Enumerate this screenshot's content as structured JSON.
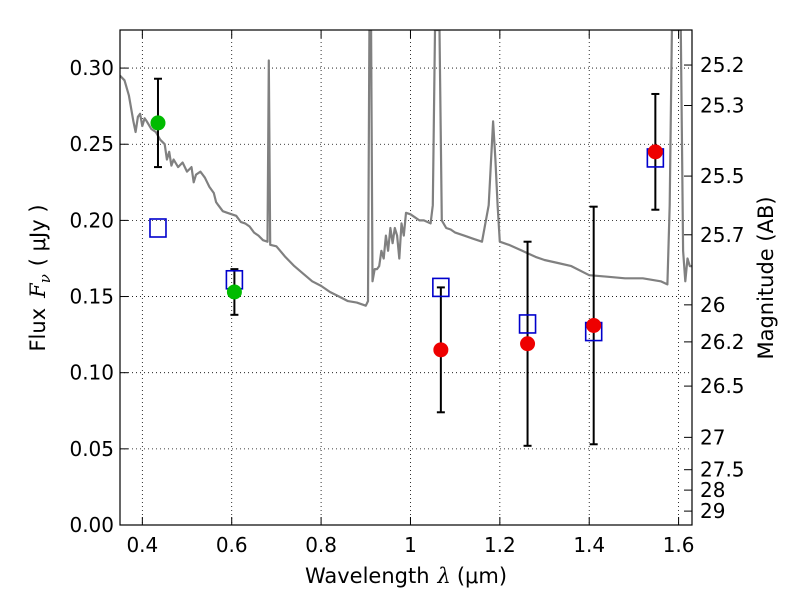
{
  "chart_data": {
    "type": "scatter",
    "xlabel": "Wavelength",
    "xlabel_symbol": "λ",
    "xlabel_unit": "(μm)",
    "ylabel": "Flux",
    "ylabel_symbol": "F",
    "ylabel_subscript": "ν",
    "ylabel_unit": "( μJy )",
    "y2label": "Magnitude (AB)",
    "xlim": [
      0.35,
      1.63
    ],
    "ylim": [
      0.0,
      0.325
    ],
    "grid": true,
    "x_ticks": [
      0.4,
      0.6,
      0.8,
      1.0,
      1.2,
      1.4,
      1.6
    ],
    "x_tick_labels": [
      "0.4",
      "0.6",
      "0.8",
      "1",
      "1.2",
      "1.4",
      "1.6"
    ],
    "y_ticks": [
      0.0,
      0.05,
      0.1,
      0.15,
      0.2,
      0.25,
      0.3
    ],
    "y_tick_labels": [
      "0.00",
      "0.05",
      "0.10",
      "0.15",
      "0.20",
      "0.25",
      "0.30"
    ],
    "mag_ticks": [
      25.2,
      25.3,
      25.5,
      25.7,
      26,
      26.2,
      26.5,
      27,
      27.5,
      28,
      29
    ],
    "mag_tick_labels": [
      "25.2",
      "25.3",
      "25.5",
      "25.7",
      "26",
      "26.2",
      "26.5",
      "27",
      "27.5",
      "28",
      "29"
    ],
    "colors": {
      "spectrum": "#808080",
      "green_points": "#00bb00",
      "red_points": "#ee0000",
      "model_squares": "#0000cc",
      "errorbar": "#000000"
    },
    "series": [
      {
        "marker": "circle",
        "color": "green",
        "points": [
          {
            "x": 0.435,
            "y": 0.264,
            "err": 0.029
          },
          {
            "x": 0.606,
            "y": 0.153,
            "err": 0.015
          }
        ]
      },
      {
        "marker": "circle",
        "color": "red",
        "points": [
          {
            "x": 1.068,
            "y": 0.115,
            "err": 0.041
          },
          {
            "x": 1.262,
            "y": 0.119,
            "err": 0.067
          },
          {
            "x": 1.41,
            "y": 0.131,
            "err": 0.078
          },
          {
            "x": 1.548,
            "y": 0.245,
            "err": 0.038
          }
        ]
      },
      {
        "marker": "square",
        "color": "blue",
        "points": [
          {
            "x": 0.435,
            "y": 0.195
          },
          {
            "x": 0.606,
            "y": 0.161
          },
          {
            "x": 1.068,
            "y": 0.156
          },
          {
            "x": 1.262,
            "y": 0.132
          },
          {
            "x": 1.41,
            "y": 0.127
          },
          {
            "x": 1.548,
            "y": 0.241
          }
        ]
      },
      {
        "type": "line",
        "color": "spectrum",
        "points": [
          [
            0.35,
            0.295
          ],
          [
            0.36,
            0.292
          ],
          [
            0.37,
            0.282
          ],
          [
            0.38,
            0.265
          ],
          [
            0.385,
            0.258
          ],
          [
            0.39,
            0.268
          ],
          [
            0.395,
            0.27
          ],
          [
            0.4,
            0.262
          ],
          [
            0.405,
            0.267
          ],
          [
            0.41,
            0.265
          ],
          [
            0.42,
            0.26
          ],
          [
            0.43,
            0.258
          ],
          [
            0.44,
            0.253
          ],
          [
            0.45,
            0.25
          ],
          [
            0.455,
            0.24
          ],
          [
            0.46,
            0.245
          ],
          [
            0.465,
            0.236
          ],
          [
            0.47,
            0.24
          ],
          [
            0.48,
            0.235
          ],
          [
            0.49,
            0.238
          ],
          [
            0.5,
            0.232
          ],
          [
            0.51,
            0.235
          ],
          [
            0.515,
            0.225
          ],
          [
            0.52,
            0.23
          ],
          [
            0.53,
            0.232
          ],
          [
            0.54,
            0.228
          ],
          [
            0.55,
            0.222
          ],
          [
            0.56,
            0.218
          ],
          [
            0.565,
            0.212
          ],
          [
            0.57,
            0.21
          ],
          [
            0.58,
            0.206
          ],
          [
            0.59,
            0.205
          ],
          [
            0.6,
            0.204
          ],
          [
            0.61,
            0.203
          ],
          [
            0.62,
            0.199
          ],
          [
            0.63,
            0.198
          ],
          [
            0.64,
            0.196
          ],
          [
            0.65,
            0.192
          ],
          [
            0.66,
            0.19
          ],
          [
            0.67,
            0.187
          ],
          [
            0.68,
            0.186
          ],
          [
            0.683,
            0.305
          ],
          [
            0.686,
            0.184
          ],
          [
            0.7,
            0.183
          ],
          [
            0.72,
            0.176
          ],
          [
            0.74,
            0.17
          ],
          [
            0.76,
            0.165
          ],
          [
            0.78,
            0.16
          ],
          [
            0.8,
            0.157
          ],
          [
            0.82,
            0.153
          ],
          [
            0.84,
            0.15
          ],
          [
            0.86,
            0.147
          ],
          [
            0.88,
            0.146
          ],
          [
            0.9,
            0.144
          ],
          [
            0.905,
            0.147
          ],
          [
            0.908,
            0.325
          ],
          [
            0.912,
            0.325
          ],
          [
            0.915,
            0.16
          ],
          [
            0.92,
            0.168
          ],
          [
            0.925,
            0.168
          ],
          [
            0.93,
            0.17
          ],
          [
            0.935,
            0.18
          ],
          [
            0.94,
            0.175
          ],
          [
            0.945,
            0.19
          ],
          [
            0.95,
            0.18
          ],
          [
            0.955,
            0.195
          ],
          [
            0.96,
            0.185
          ],
          [
            0.965,
            0.195
          ],
          [
            0.97,
            0.19
          ],
          [
            0.975,
            0.175
          ],
          [
            0.98,
            0.198
          ],
          [
            0.985,
            0.19
          ],
          [
            0.99,
            0.205
          ],
          [
            1.0,
            0.204
          ],
          [
            1.01,
            0.202
          ],
          [
            1.02,
            0.2
          ],
          [
            1.03,
            0.2
          ],
          [
            1.045,
            0.198
          ],
          [
            1.05,
            0.21
          ],
          [
            1.055,
            0.325
          ],
          [
            1.065,
            0.325
          ],
          [
            1.07,
            0.2
          ],
          [
            1.08,
            0.195
          ],
          [
            1.09,
            0.194
          ],
          [
            1.1,
            0.192
          ],
          [
            1.12,
            0.19
          ],
          [
            1.14,
            0.188
          ],
          [
            1.16,
            0.186
          ],
          [
            1.175,
            0.21
          ],
          [
            1.185,
            0.265
          ],
          [
            1.19,
            0.24
          ],
          [
            1.195,
            0.21
          ],
          [
            1.2,
            0.186
          ],
          [
            1.22,
            0.184
          ],
          [
            1.25,
            0.18
          ],
          [
            1.28,
            0.176
          ],
          [
            1.3,
            0.174
          ],
          [
            1.33,
            0.172
          ],
          [
            1.36,
            0.17
          ],
          [
            1.4,
            0.164
          ],
          [
            1.44,
            0.163
          ],
          [
            1.48,
            0.162
          ],
          [
            1.52,
            0.162
          ],
          [
            1.56,
            0.16
          ],
          [
            1.575,
            0.158
          ],
          [
            1.58,
            0.21
          ],
          [
            1.585,
            0.325
          ],
          [
            1.605,
            0.325
          ],
          [
            1.61,
            0.18
          ],
          [
            1.615,
            0.16
          ],
          [
            1.62,
            0.175
          ],
          [
            1.625,
            0.17
          ],
          [
            1.63,
            0.17
          ]
        ]
      }
    ]
  }
}
